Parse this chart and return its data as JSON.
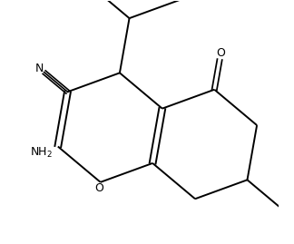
{
  "background_color": "#ffffff",
  "line_color": "#000000",
  "line_width": 1.4,
  "figsize": [
    3.24,
    2.69
  ],
  "dpi": 100,
  "xlim": [
    -3.8,
    3.8
  ],
  "ylim": [
    -3.2,
    3.8
  ]
}
